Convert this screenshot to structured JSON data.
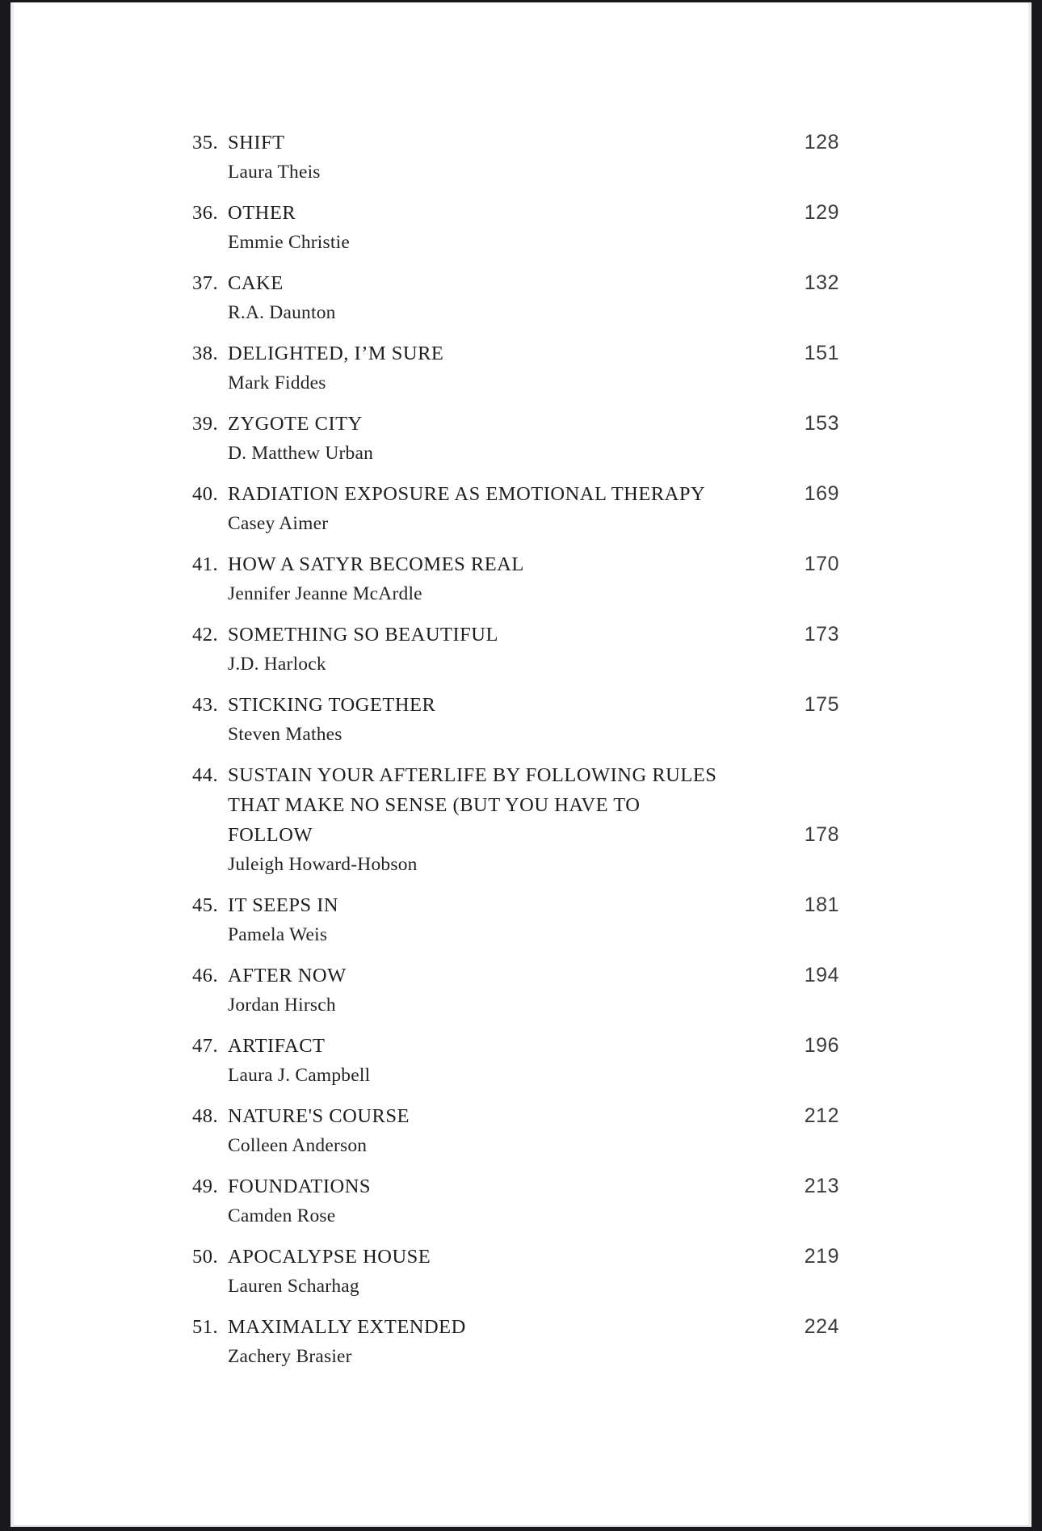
{
  "appearance": {
    "frame_color": "#19191b",
    "page_color": "#ffffff",
    "page_edge_color": "#ededed",
    "title_color": "#1d1d1d",
    "author_color": "#242424",
    "page_number_color": "#3c3c3c"
  },
  "toc": {
    "entries": [
      {
        "number": "35.",
        "title": "SHIFT",
        "author": "Laura Theis",
        "page": "128"
      },
      {
        "number": "36.",
        "title": "OTHER",
        "author": "Emmie Christie",
        "page": "129"
      },
      {
        "number": "37.",
        "title": "CAKE",
        "author": "R.A. Daunton",
        "page": "132"
      },
      {
        "number": "38.",
        "title": "DELIGHTED, I’M SURE",
        "author": "Mark Fiddes",
        "page": "151"
      },
      {
        "number": "39.",
        "title": "ZYGOTE CITY",
        "author": "D. Matthew Urban",
        "page": "153"
      },
      {
        "number": "40.",
        "title": "RADIATION EXPOSURE AS EMOTIONAL THERAPY",
        "author": "Casey Aimer",
        "page": "169"
      },
      {
        "number": "41.",
        "title": "HOW A SATYR BECOMES REAL",
        "author": "Jennifer Jeanne McArdle",
        "page": "170"
      },
      {
        "number": "42.",
        "title": "SOMETHING SO BEAUTIFUL",
        "author": "J.D. Harlock",
        "page": "173"
      },
      {
        "number": "43.",
        "title": "STICKING TOGETHER",
        "author": "Steven Mathes",
        "page": "175"
      },
      {
        "number": "44.",
        "title": "SUSTAIN YOUR AFTERLIFE BY FOLLOWING RULES THAT MAKE NO SENSE (BUT YOU HAVE TO FOLLOW",
        "author": "Juleigh Howard-Hobson",
        "page": "178"
      },
      {
        "number": "45.",
        "title": "IT SEEPS IN",
        "author": "Pamela Weis",
        "page": "181"
      },
      {
        "number": "46.",
        "title": "AFTER NOW",
        "author": "Jordan Hirsch",
        "page": "194"
      },
      {
        "number": "47.",
        "title": "ARTIFACT",
        "author": "Laura J. Campbell",
        "page": "196"
      },
      {
        "number": "48.",
        "title": "NATURE'S COURSE",
        "author": "Colleen Anderson",
        "page": "212"
      },
      {
        "number": "49.",
        "title": "FOUNDATIONS",
        "author": "Camden Rose",
        "page": "213"
      },
      {
        "number": "50.",
        "title": "APOCALYPSE HOUSE",
        "author": "Lauren Scharhag",
        "page": "219"
      },
      {
        "number": "51.",
        "title": "MAXIMALLY EXTENDED",
        "author": "Zachery Brasier",
        "page": "224"
      }
    ]
  }
}
